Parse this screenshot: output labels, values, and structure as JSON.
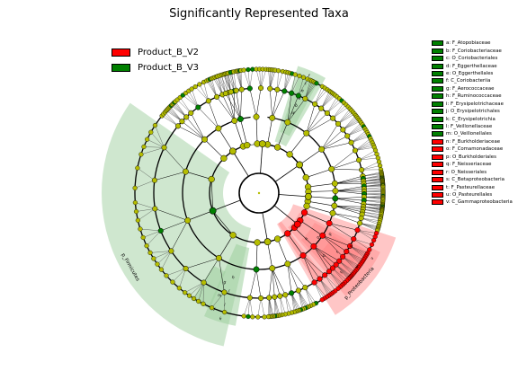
{
  "title": "Significantly Represented Taxa",
  "colors": {
    "product_b_v2": "#ff0000",
    "product_b_v3": "#008000",
    "node_default": "#b5bd00",
    "green_sector": "#9fd09f",
    "red_sector": "#ff8080"
  },
  "legend": [
    {
      "label": "Product_B_V2",
      "color": "#ff0000"
    },
    {
      "label": "Product_B_V3",
      "color": "#008000"
    }
  ],
  "taxa": [
    {
      "label": "a: F_Atopobiaceae",
      "group": "Product_B_V3"
    },
    {
      "label": "b: F_Coriobacteriaceae",
      "group": "Product_B_V3"
    },
    {
      "label": "c: O_Coriobacteriales",
      "group": "Product_B_V3"
    },
    {
      "label": "d: F_Eggerthellaceae",
      "group": "Product_B_V3"
    },
    {
      "label": "e: O_Eggerthellales",
      "group": "Product_B_V3"
    },
    {
      "label": "f: C_Coriobacteriia",
      "group": "Product_B_V3"
    },
    {
      "label": "g: F_Aerococcaceae",
      "group": "Product_B_V3"
    },
    {
      "label": "h: F_Ruminococcaceae",
      "group": "Product_B_V3"
    },
    {
      "label": "i: F_Erysipelotrichaceae",
      "group": "Product_B_V3"
    },
    {
      "label": "j: O_Erysipelotrichales",
      "group": "Product_B_V3"
    },
    {
      "label": "k: C_Erysipelotrichia",
      "group": "Product_B_V3"
    },
    {
      "label": "l: F_Veillonellaceae",
      "group": "Product_B_V3"
    },
    {
      "label": "m: O_Veillonellales",
      "group": "Product_B_V3"
    },
    {
      "label": "n: F_Burkholderiaceae",
      "group": "Product_B_V2"
    },
    {
      "label": "o: F_Comamonadaceae",
      "group": "Product_B_V2"
    },
    {
      "label": "p: O_Burkholderiales",
      "group": "Product_B_V2"
    },
    {
      "label": "q: F_Neisseriaceae",
      "group": "Product_B_V2"
    },
    {
      "label": "r: O_Neisseriales",
      "group": "Product_B_V2"
    },
    {
      "label": "s: C_Betaproteobacteria",
      "group": "Product_B_V2"
    },
    {
      "label": "t: F_Pasteurellaceae",
      "group": "Product_B_V2"
    },
    {
      "label": "u: O_Pasteurellales",
      "group": "Product_B_V2"
    },
    {
      "label": "v: C_Gammaproteobacteria",
      "group": "Product_B_V2"
    }
  ],
  "sector_labels": {
    "green_large": "p_Firmicutes",
    "red_large": "p_Proteobacteria",
    "green_top": [
      "f",
      "c",
      "e",
      "a",
      "b",
      "d"
    ],
    "green_bottom": [
      "k",
      "j",
      "i",
      "m",
      "l",
      "g",
      "h"
    ],
    "red": [
      "v",
      "u",
      "t",
      "s",
      "r",
      "q",
      "p",
      "o",
      "n"
    ]
  }
}
